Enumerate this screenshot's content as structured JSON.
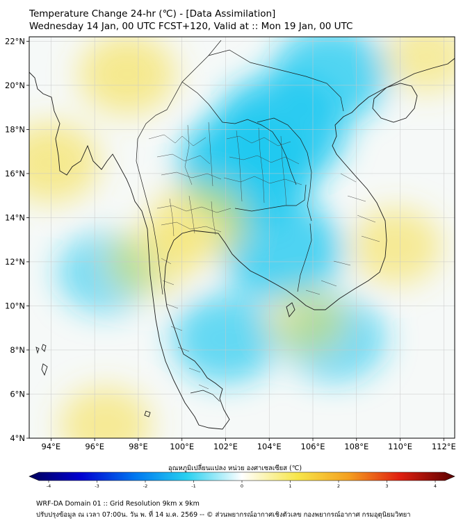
{
  "title_line1": "Temperature Change 24-hr (℃) - [Data Assimilation]",
  "title_line2": "Wednesday 14 Jan, 00 UTC FCST+120, Valid at :: Mon 19 Jan, 00 UTC",
  "lat_labels": [
    "22°N",
    "20°N",
    "18°N",
    "16°N",
    "14°N",
    "12°N",
    "10°N",
    "8°N",
    "6°N",
    "4°N"
  ],
  "lat_values": [
    22,
    20,
    18,
    16,
    14,
    12,
    10,
    8,
    6,
    4
  ],
  "lon_labels": [
    "94°E",
    "96°E",
    "98°E",
    "100°E",
    "102°E",
    "104°E",
    "106°E",
    "108°E",
    "110°E",
    "112°E"
  ],
  "lon_values": [
    94,
    96,
    98,
    100,
    102,
    104,
    106,
    108,
    110,
    112
  ],
  "extent": {
    "lon_min": 93,
    "lon_max": 112.5,
    "lat_min": 4,
    "lat_max": 22.2
  },
  "colorbar": {
    "label": "อุณหภูมิเปลี่ยนแปลง หน่วย องศาเซลเซียส (℃)",
    "ticks": [
      "-4",
      "-3",
      "-2",
      "-1",
      "0",
      "1",
      "2",
      "3",
      "4"
    ],
    "min": -4,
    "max": 4
  },
  "footer_line1": "WRF-DA Domain 01 :: Grid Resolution 9km x 9km",
  "footer_line2": "ปรับปรุงข้อมูล ณ เวลา 07:00น. วัน พ. ที่ 14 ม.ค. 2569 -- © ส่วนพยากรณ์อากาศเชิงตัวเลข กองพยากรณ์อากาศ กรมอุตุนิยมวิทยา",
  "field_anomalies": [
    {
      "region": "northeast-thailand-laos",
      "lon": 103.0,
      "lat": 16.3,
      "value": -1.4
    },
    {
      "region": "central-laos",
      "lon": 104.5,
      "lat": 18.0,
      "value": -1.3
    },
    {
      "region": "north-vietnam-gulf",
      "lon": 106.8,
      "lat": 20.5,
      "value": -1.0
    },
    {
      "region": "cambodia",
      "lon": 104.6,
      "lat": 12.5,
      "value": -1.1
    },
    {
      "region": "south-china-sea",
      "lon": 107.0,
      "lat": 8.5,
      "value": -0.7
    },
    {
      "region": "gulf-of-thailand",
      "lon": 102.0,
      "lat": 8.5,
      "value": -0.8
    },
    {
      "region": "andaman-sea",
      "lon": 96.5,
      "lat": 11.5,
      "value": -0.6
    },
    {
      "region": "myanmar-north",
      "lon": 97.5,
      "lat": 20.5,
      "value": 0.6
    },
    {
      "region": "myanmar-west",
      "lon": 94.0,
      "lat": 16.5,
      "value": 0.6
    },
    {
      "region": "central-thailand",
      "lon": 100.8,
      "lat": 13.8,
      "value": 0.6
    },
    {
      "region": "myanmar-south-strip",
      "lon": 98.5,
      "lat": 12.0,
      "value": 0.4
    },
    {
      "region": "sumatra-north",
      "lon": 96.5,
      "lat": 4.6,
      "value": 0.5
    },
    {
      "region": "south-vietnam-coast",
      "lon": 109.8,
      "lat": 12.7,
      "value": 0.5
    },
    {
      "region": "south-china-coast",
      "lon": 111.2,
      "lat": 21.3,
      "value": 0.4
    },
    {
      "region": "mekong-delta",
      "lon": 105.7,
      "lat": 9.3,
      "value": 0.3
    }
  ]
}
